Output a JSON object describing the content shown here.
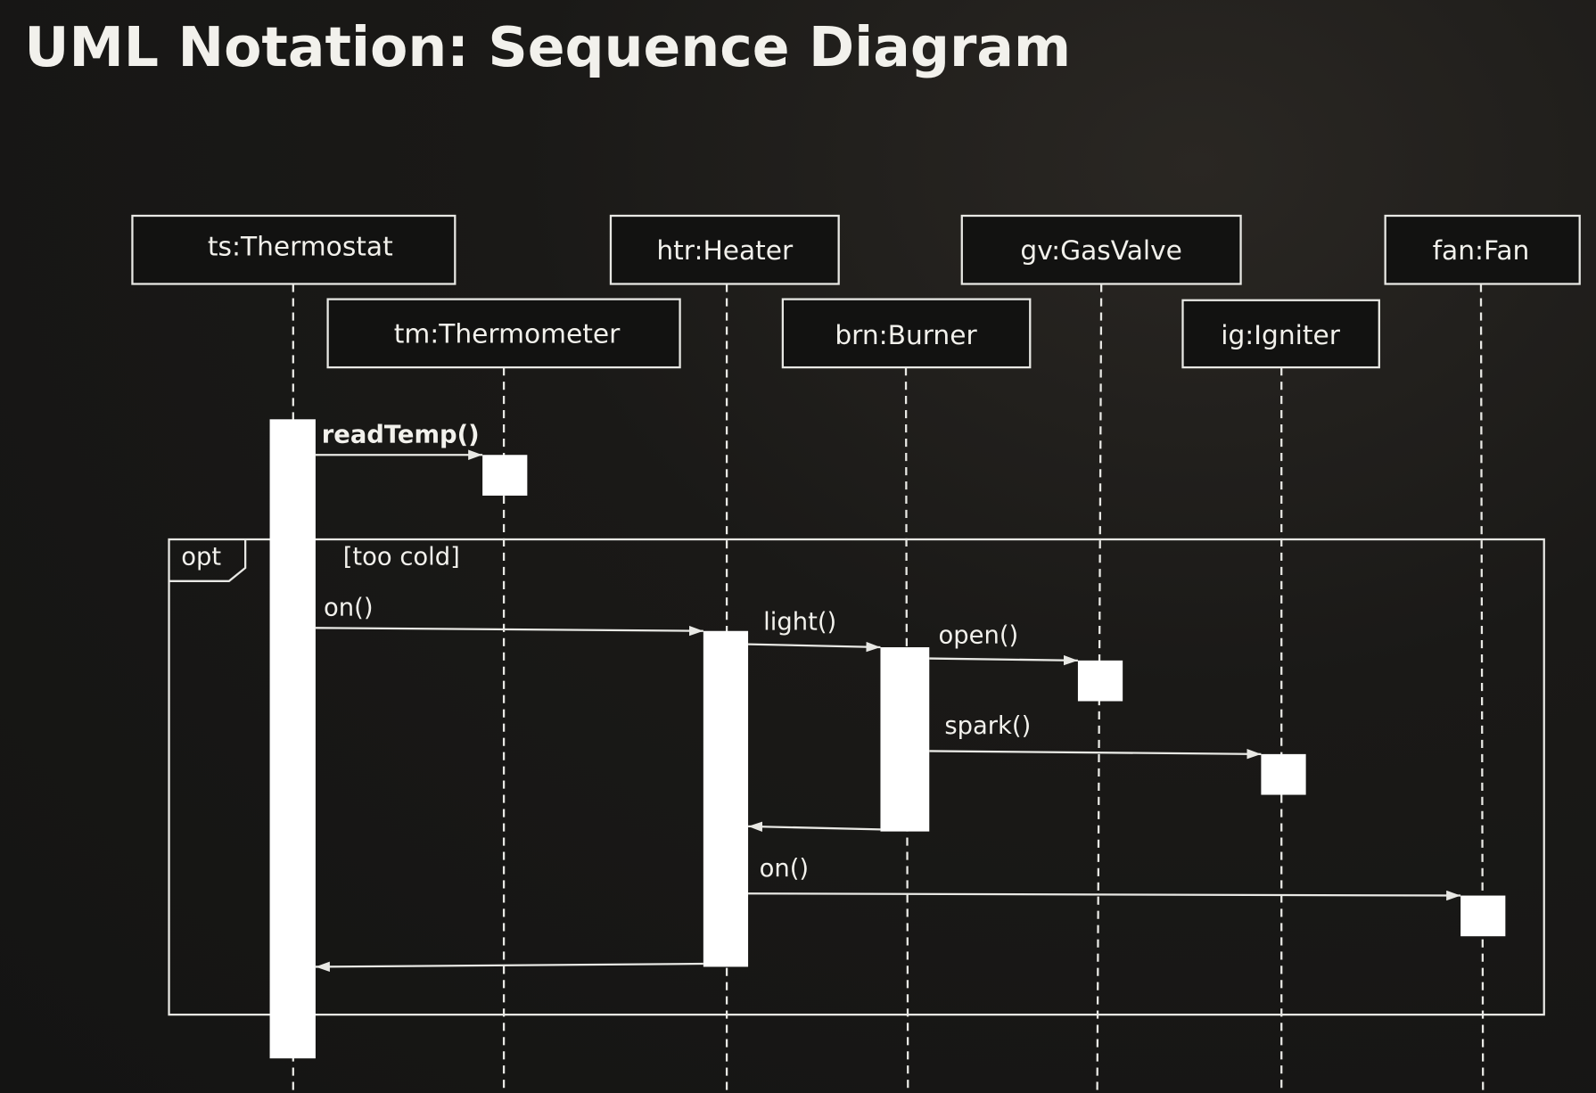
{
  "title": "UML Notation: Sequence Diagram",
  "lifelines": {
    "thermostat": "ts:Thermostat",
    "thermometer": "tm:Thermometer",
    "heater": "htr:Heater",
    "burner": "brn:Burner",
    "gasvalve": "gv:GasValve",
    "igniter": "ig:Igniter",
    "fan": "fan:Fan"
  },
  "messages": {
    "readTemp": "readTemp()",
    "heater_on": "on()",
    "light": "light()",
    "open": "open()",
    "spark": "spark()",
    "fan_on": "on()"
  },
  "fragment": {
    "operator": "opt",
    "guard": "[too cold]"
  },
  "colors": {
    "background": "#141413",
    "foreground": "#f2f1ec"
  }
}
